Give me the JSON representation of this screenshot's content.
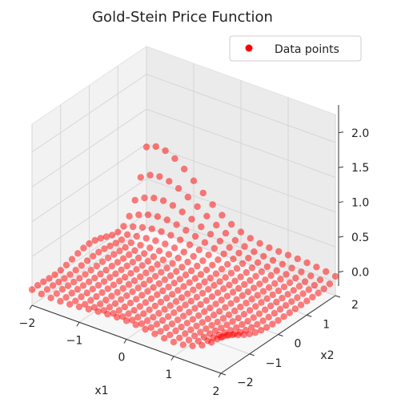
{
  "chart_data": {
    "type": "scatter",
    "projection": "3d",
    "title": "Gold-Stein Price Function",
    "xlabel": "x1",
    "ylabel": "x2",
    "zlabel": "",
    "xlim": [
      -2,
      2
    ],
    "ylim": [
      -2,
      2
    ],
    "zlim": [
      -0.2,
      2.4
    ],
    "z_scale": "1e6",
    "grid": true,
    "legend_position": "top-right",
    "series": [
      {
        "name": "Data points",
        "color": "#ff0000",
        "opacity": 0.5,
        "grid_axis": [
          -2.0,
          -1.8,
          -1.6,
          -1.4,
          -1.2,
          -1.0,
          -0.8,
          -0.6,
          -0.4,
          -0.2,
          0.0,
          0.2,
          0.4,
          0.6,
          0.8,
          1.0,
          1.2,
          1.4,
          1.6,
          1.8,
          2.0
        ],
        "function": "goldstein-price(x1, x2) / 1e6"
      }
    ],
    "x_ticks": [
      "−2",
      "−1",
      "0",
      "1",
      "2"
    ],
    "y_ticks": [
      "−2",
      "−1",
      "0",
      "1",
      "2"
    ],
    "z_ticks": [
      "0.0",
      "0.5",
      "1.0",
      "1.5",
      "2.0"
    ]
  }
}
